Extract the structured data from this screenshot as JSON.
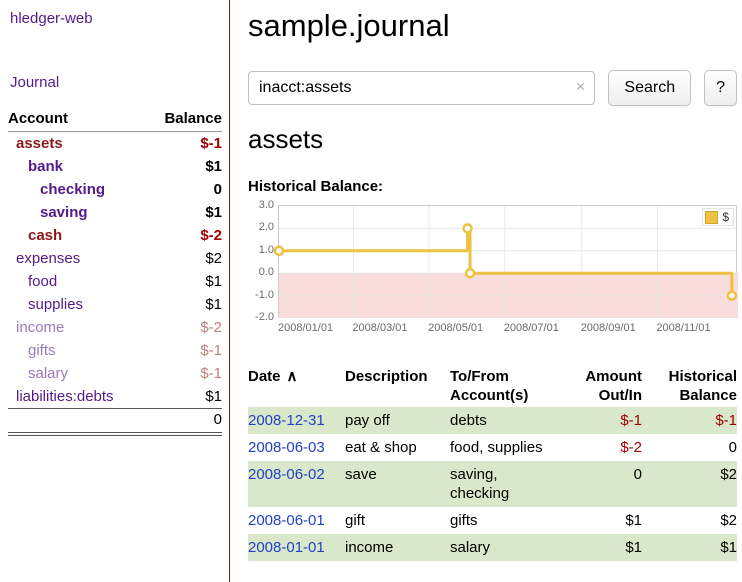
{
  "app": {
    "brand": "hledger-web",
    "journal_link": "Journal"
  },
  "sidebar": {
    "col_account": "Account",
    "col_balance": "Balance",
    "accounts": [
      {
        "name": "assets",
        "balance": "$-1"
      },
      {
        "name": "bank",
        "balance": "$1"
      },
      {
        "name": "checking",
        "balance": "0"
      },
      {
        "name": "saving",
        "balance": "$1"
      },
      {
        "name": "cash",
        "balance": "$-2"
      },
      {
        "name": "expenses",
        "balance": "$2"
      },
      {
        "name": "food",
        "balance": "$1"
      },
      {
        "name": "supplies",
        "balance": "$1"
      },
      {
        "name": "income",
        "balance": "$-2"
      },
      {
        "name": "gifts",
        "balance": "$-1"
      },
      {
        "name": "salary",
        "balance": "$-1"
      },
      {
        "name": "liabilities:debts",
        "balance": "$1"
      }
    ],
    "total": "0"
  },
  "main": {
    "title": "sample.journal",
    "search": {
      "query": "inacct:assets",
      "clear_icon": "×",
      "search_button": "Search",
      "help_button": "?"
    },
    "account_heading": "assets",
    "chart_title": "Historical Balance:"
  },
  "chart_data": {
    "type": "line",
    "step": true,
    "title": "Historical Balance of assets",
    "legend": {
      "label": "$",
      "position": "top-right"
    },
    "x_domain_days": [
      0,
      370
    ],
    "x_ticks": [
      {
        "day": 0,
        "label": "2008/01/01"
      },
      {
        "day": 60,
        "label": "2008/03/01"
      },
      {
        "day": 121,
        "label": "2008/05/01"
      },
      {
        "day": 182,
        "label": "2008/07/01"
      },
      {
        "day": 244,
        "label": "2008/09/01"
      },
      {
        "day": 305,
        "label": "2008/11/01"
      }
    ],
    "ylim": [
      -2,
      3
    ],
    "y_ticks": [
      3,
      2,
      1,
      0,
      -1,
      -2
    ],
    "series": [
      {
        "name": "$",
        "points": [
          {
            "date": "2008-01-01",
            "day": 0,
            "value": 1
          },
          {
            "date": "2008-06-01",
            "day": 152,
            "value": 2
          },
          {
            "date": "2008-06-03",
            "day": 154,
            "value": 0
          },
          {
            "date": "2008-12-31",
            "day": 365,
            "value": -1
          }
        ]
      }
    ],
    "colors": {
      "line": "#edc240",
      "point_fill": "#ffffff",
      "negative_region": "#f9dcdc",
      "grid": "#e7e7e7"
    }
  },
  "register": {
    "headers": {
      "date": "Date",
      "sort_icon": "∧",
      "description": "Description",
      "accounts": "To/From Account(s)",
      "amount": "Amount Out/In",
      "balance": "Historical Balance"
    },
    "rows": [
      {
        "date": "2008-12-31",
        "description": "pay off",
        "accounts": "debts",
        "amount": "$-1",
        "balance": "$-1"
      },
      {
        "date": "2008-06-03",
        "description": "eat & shop",
        "accounts": "food, supplies",
        "amount": "$-2",
        "balance": "0"
      },
      {
        "date": "2008-06-02",
        "description": "save",
        "accounts": "saving, checking",
        "amount": "0",
        "balance": "$2"
      },
      {
        "date": "2008-06-01",
        "description": "gift",
        "accounts": "gifts",
        "amount": "$1",
        "balance": "$2"
      },
      {
        "date": "2008-01-01",
        "description": "income",
        "accounts": "salary",
        "amount": "$1",
        "balance": "$1"
      }
    ]
  }
}
